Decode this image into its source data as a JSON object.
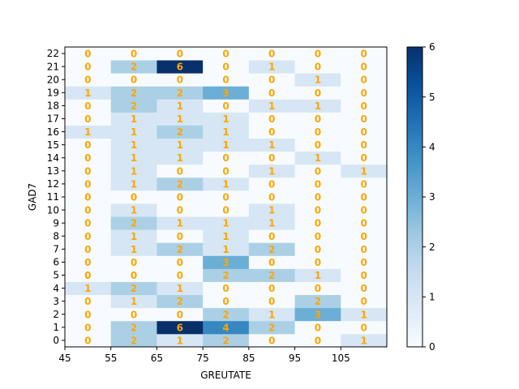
{
  "chart_data": {
    "type": "heatmap",
    "title": "",
    "xlabel": "GREUTATE",
    "ylabel": "GAD7",
    "x_bin_edges": [
      45,
      55,
      65,
      75,
      85,
      95,
      105,
      115
    ],
    "x_tick_labels": [
      "45",
      "55",
      "65",
      "75",
      "85",
      "95",
      "105"
    ],
    "y_tick_labels": [
      "0",
      "1",
      "2",
      "3",
      "4",
      "5",
      "6",
      "7",
      "8",
      "9",
      "10",
      "11",
      "12",
      "13",
      "14",
      "15",
      "16",
      "17",
      "18",
      "19",
      "20",
      "21",
      "22"
    ],
    "colorbar_ticks": [
      "0",
      "1",
      "2",
      "3",
      "4",
      "5",
      "6"
    ],
    "vmin": 0,
    "vmax": 6,
    "colormap": "Blues",
    "annotation_color": "#FFA500",
    "counts": [
      [
        0,
        2,
        1,
        2,
        0,
        0,
        1
      ],
      [
        0,
        2,
        6,
        4,
        2,
        0,
        0
      ],
      [
        0,
        0,
        0,
        2,
        1,
        3,
        1
      ],
      [
        0,
        1,
        2,
        0,
        0,
        2,
        0
      ],
      [
        1,
        2,
        1,
        0,
        0,
        0,
        0
      ],
      [
        0,
        0,
        0,
        2,
        2,
        1,
        0
      ],
      [
        0,
        0,
        0,
        3,
        0,
        0,
        0
      ],
      [
        0,
        1,
        2,
        1,
        2,
        0,
        0
      ],
      [
        0,
        1,
        0,
        1,
        0,
        0,
        0
      ],
      [
        0,
        2,
        1,
        1,
        1,
        0,
        0
      ],
      [
        0,
        1,
        0,
        0,
        1,
        0,
        0
      ],
      [
        0,
        0,
        0,
        0,
        0,
        0,
        0
      ],
      [
        0,
        1,
        2,
        1,
        0,
        0,
        0
      ],
      [
        0,
        1,
        0,
        0,
        1,
        0,
        1
      ],
      [
        0,
        1,
        1,
        0,
        0,
        1,
        0
      ],
      [
        0,
        1,
        1,
        1,
        1,
        0,
        0
      ],
      [
        1,
        1,
        2,
        1,
        0,
        0,
        0
      ],
      [
        0,
        1,
        1,
        1,
        0,
        0,
        0
      ],
      [
        0,
        2,
        1,
        0,
        1,
        1,
        0
      ],
      [
        1,
        2,
        2,
        3,
        0,
        0,
        0
      ],
      [
        0,
        0,
        0,
        0,
        0,
        1,
        0
      ],
      [
        0,
        2,
        6,
        0,
        1,
        0,
        0
      ],
      [
        0,
        0,
        0,
        0,
        0,
        0,
        0
      ]
    ]
  }
}
